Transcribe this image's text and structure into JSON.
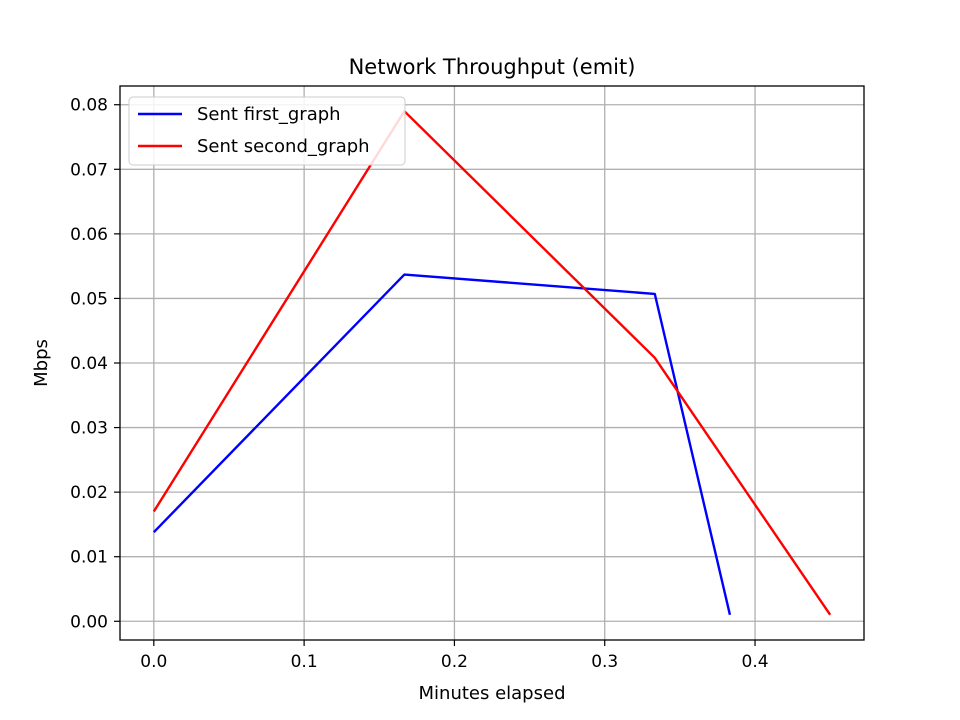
{
  "chart_data": {
    "type": "line",
    "title": "Network Throughput (emit)",
    "xlabel": "Minutes elapsed",
    "ylabel": "Mbps",
    "xlim": [
      -0.0225,
      0.4725
    ],
    "ylim": [
      -0.0029,
      0.0829
    ],
    "xticks": [
      0.0,
      0.1,
      0.2,
      0.3,
      0.4
    ],
    "xtick_labels": [
      "0.0",
      "0.1",
      "0.2",
      "0.3",
      "0.4"
    ],
    "yticks": [
      0.0,
      0.01,
      0.02,
      0.03,
      0.04,
      0.05,
      0.06,
      0.07,
      0.08
    ],
    "ytick_labels": [
      "0.00",
      "0.01",
      "0.02",
      "0.03",
      "0.04",
      "0.05",
      "0.06",
      "0.07",
      "0.08"
    ],
    "grid": true,
    "legend_position": "top-left",
    "series": [
      {
        "name": "Sent first_graph",
        "color": "#0000ff",
        "x": [
          0.0,
          0.1667,
          0.3333,
          0.3833
        ],
        "y": [
          0.0138,
          0.0537,
          0.0507,
          0.001
        ]
      },
      {
        "name": "Sent second_graph",
        "color": "#ff0000",
        "x": [
          0.0,
          0.1667,
          0.3333,
          0.45
        ],
        "y": [
          0.017,
          0.079,
          0.0408,
          0.001
        ]
      }
    ]
  }
}
